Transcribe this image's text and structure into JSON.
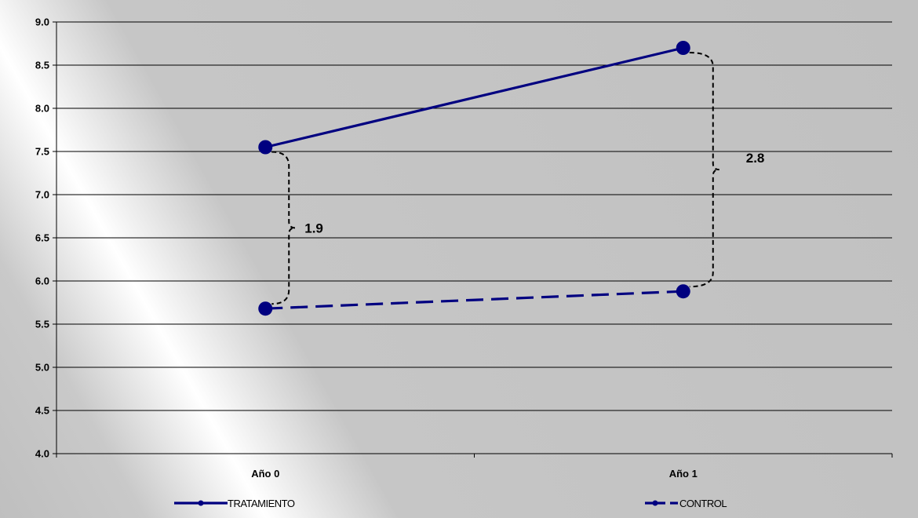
{
  "chart_data": {
    "type": "line",
    "categories": [
      "Año 0",
      "Año 1"
    ],
    "ylim": [
      4.0,
      9.0
    ],
    "yticks": [
      "4.0",
      "4.5",
      "5.0",
      "5.5",
      "6.0",
      "6.5",
      "7.0",
      "7.5",
      "8.0",
      "8.5",
      "9.0"
    ],
    "grid": true,
    "legend_position": "bottom",
    "series": [
      {
        "name": "TRATAMIENTO",
        "values": [
          7.55,
          8.7
        ],
        "color": "#000080",
        "style": "solid"
      },
      {
        "name": "CONTROL",
        "values": [
          5.68,
          5.88
        ],
        "color": "#000080",
        "style": "dashed"
      }
    ],
    "annotations": [
      {
        "text": "1.9",
        "category": "Año 0"
      },
      {
        "text": "2.8",
        "category": "Año 1"
      }
    ],
    "background": {
      "base": "#c0c0c0",
      "highlight": "#ffffff"
    }
  }
}
